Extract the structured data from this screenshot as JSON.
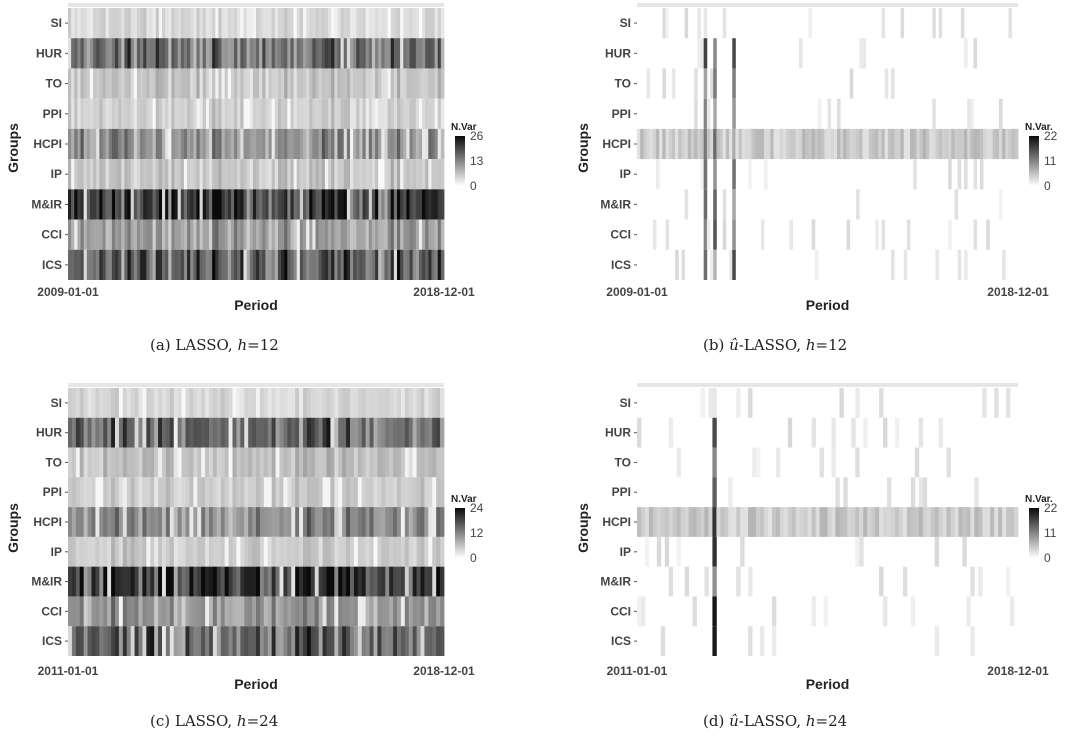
{
  "chart_data": [
    {
      "id": "a",
      "type": "heatmap",
      "caption": "(a) LASSO, h=12",
      "caption_parts": {
        "label": "(a) ",
        "method": "LASSO",
        "sep": ", ",
        "hvar": "h",
        "hval": "=12"
      },
      "xlabel": "Period",
      "ylabel": "Groups",
      "x_ticks": [
        "2009-01-01",
        "2018-12-01"
      ],
      "groups": [
        "SI",
        "HUR",
        "TO",
        "PPI",
        "HCPI",
        "IP",
        "M&IR",
        "CCI",
        "ICS"
      ],
      "legend_title": "N.Var",
      "legend_ticks": [
        26,
        13,
        0
      ],
      "vmax": 26,
      "n_periods": 120,
      "group_base": {
        "SI": 4,
        "HUR": 15,
        "TO": 6,
        "PPI": 5,
        "HCPI": 12,
        "IP": 6,
        "M&IR": 21,
        "CCI": 10,
        "ICS": 17
      }
    },
    {
      "id": "b",
      "type": "heatmap",
      "caption": "(b) û-LASSO, h=12",
      "caption_parts": {
        "label": "(b) ",
        "method": "-LASSO",
        "sep": ", ",
        "hvar": "h",
        "hval": "=12"
      },
      "xlabel": "Period",
      "ylabel": "Groups",
      "x_ticks": [
        "2009-01-01",
        "2018-12-01"
      ],
      "groups": [
        "SI",
        "HUR",
        "TO",
        "PPI",
        "HCPI",
        "IP",
        "M&IR",
        "CCI",
        "ICS"
      ],
      "legend_title": "N.Var.",
      "legend_ticks": [
        22,
        11,
        0
      ],
      "vmax": 22,
      "n_periods": 120,
      "group_base": {
        "SI": 0,
        "HUR": 0.3,
        "TO": 0.5,
        "PPI": 0.5,
        "HCPI": 4,
        "IP": 0.5,
        "M&IR": 0.3,
        "CCI": 0.4,
        "ICS": 0.4
      }
    },
    {
      "id": "c",
      "type": "heatmap",
      "caption": "(c) LASSO, h=24",
      "caption_parts": {
        "label": "(c) ",
        "method": "LASSO",
        "sep": ", ",
        "hvar": "h",
        "hval": "=24"
      },
      "xlabel": "Period",
      "ylabel": "Groups",
      "x_ticks": [
        "2011-01-01",
        "2018-12-01"
      ],
      "groups": [
        "SI",
        "HUR",
        "TO",
        "PPI",
        "HCPI",
        "IP",
        "M&IR",
        "CCI",
        "ICS"
      ],
      "legend_title": "N.Var",
      "legend_ticks": [
        24,
        12,
        0
      ],
      "vmax": 24,
      "n_periods": 96,
      "group_base": {
        "SI": 4,
        "HUR": 14,
        "TO": 6,
        "PPI": 5,
        "HCPI": 11,
        "IP": 5,
        "M&IR": 19,
        "CCI": 10,
        "ICS": 15
      }
    },
    {
      "id": "d",
      "type": "heatmap",
      "caption": "(d) û-LASSO, h=24",
      "caption_parts": {
        "label": "(d) ",
        "method": "-LASSO",
        "sep": ", ",
        "hvar": "h",
        "hval": "=24"
      },
      "xlabel": "Period",
      "ylabel": "Groups",
      "x_ticks": [
        "2011-01-01",
        "2018-12-01"
      ],
      "groups": [
        "SI",
        "HUR",
        "TO",
        "PPI",
        "HCPI",
        "IP",
        "M&IR",
        "CCI",
        "ICS"
      ],
      "legend_title": "N.Var.",
      "legend_ticks": [
        22,
        11,
        0
      ],
      "vmax": 22,
      "n_periods": 96,
      "group_base": {
        "SI": 0,
        "HUR": 0.2,
        "TO": 0.4,
        "PPI": 0.5,
        "HCPI": 4,
        "IP": 0.5,
        "M&IR": 0.3,
        "CCI": 0.4,
        "ICS": 0.3
      }
    }
  ]
}
